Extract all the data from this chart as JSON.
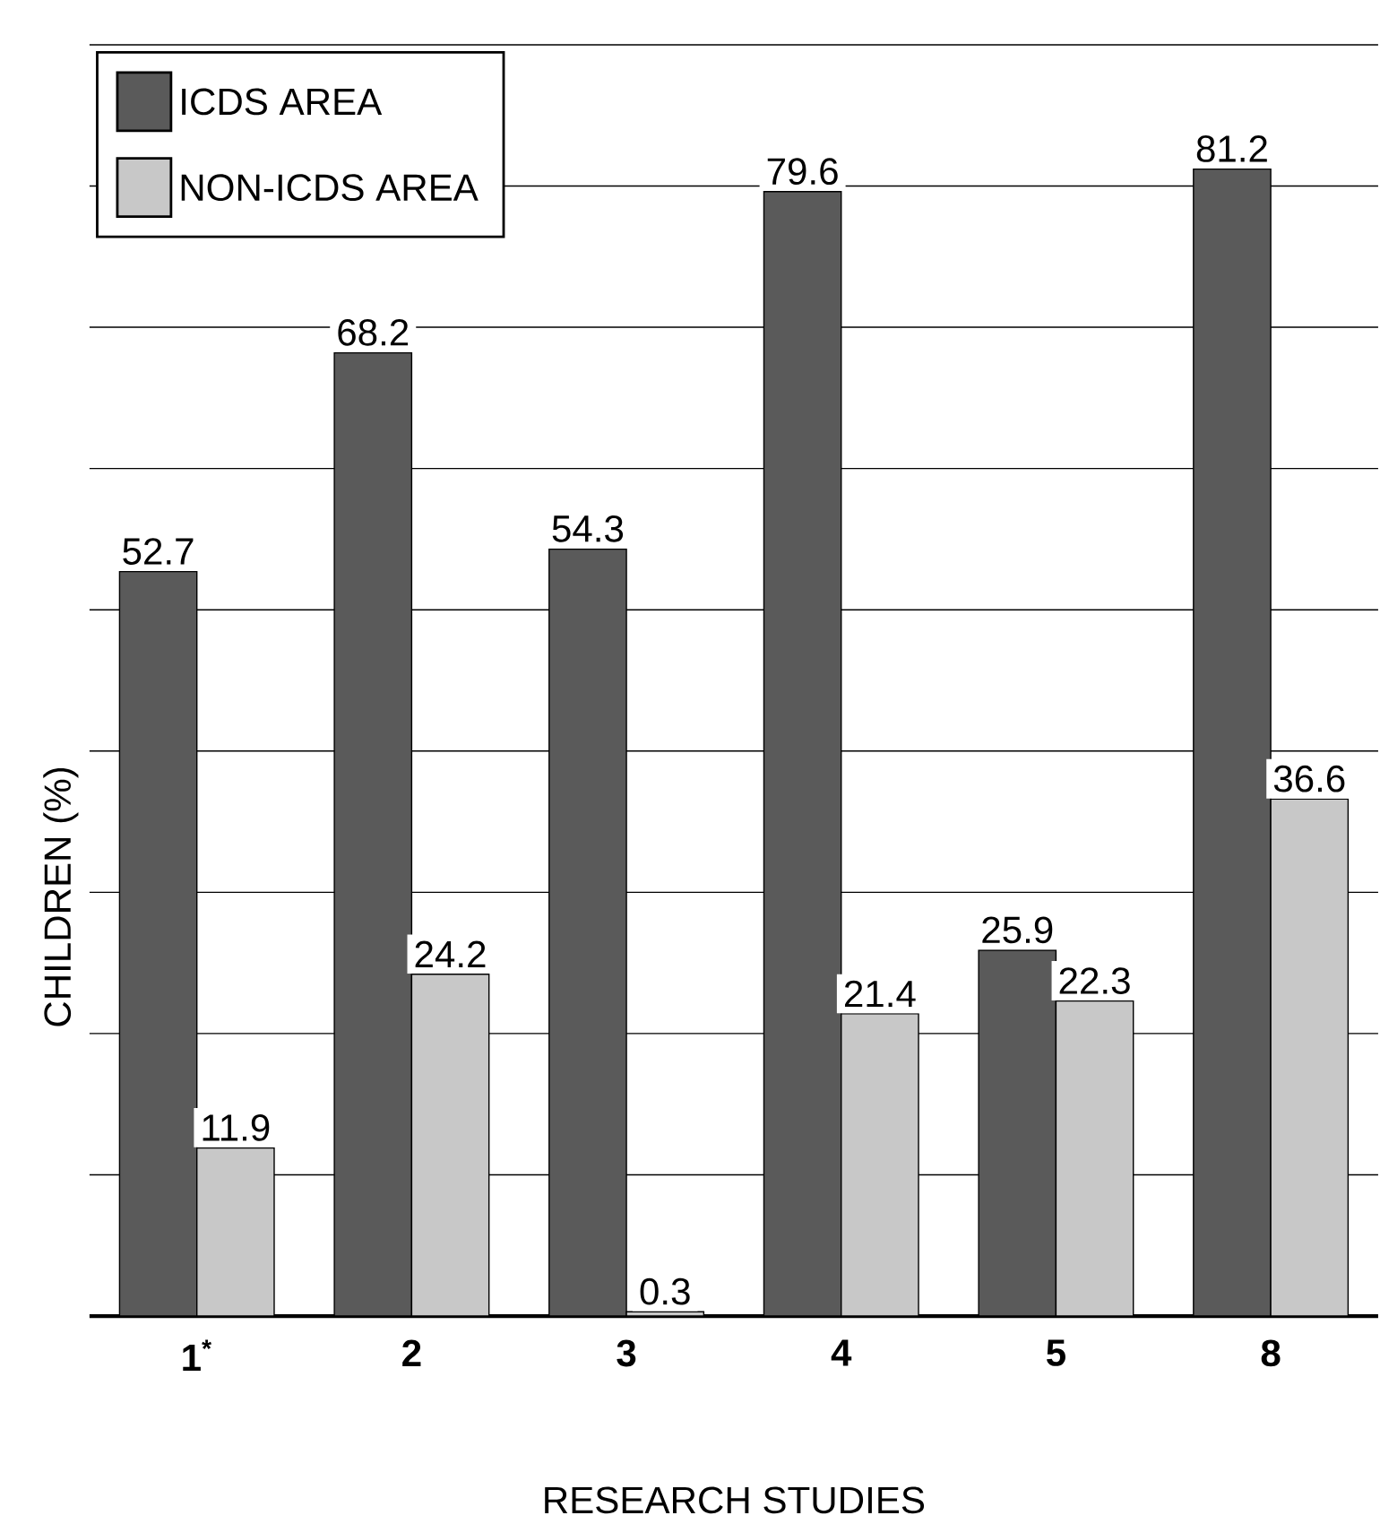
{
  "chart_data": {
    "type": "bar",
    "xlabel": "RESEARCH STUDIES",
    "ylabel": "CHILDREN (%)",
    "categories": [
      "1$^{*}$",
      "2",
      "3",
      "4",
      "5",
      "8"
    ],
    "series": [
      {
        "name": "ICDS AREA",
        "color": "#5a5a5a",
        "values": [
          52.7,
          68.2,
          54.3,
          79.6,
          25.9,
          81.2
        ]
      },
      {
        "name": "NON-ICDS AREA",
        "color": "#c8c8c8",
        "values": [
          11.9,
          24.2,
          0.3,
          21.4,
          22.3,
          36.6
        ]
      }
    ],
    "ylim": [
      0,
      90
    ],
    "yticks": [
      {
        "value": 10,
        "label": null
      },
      {
        "value": 20,
        "label": null
      },
      {
        "value": 30,
        "label": null
      },
      {
        "value": 40,
        "label": null
      },
      {
        "value": 50,
        "label": null
      },
      {
        "value": 60,
        "label": null
      },
      {
        "value": 70,
        "label": null
      },
      {
        "value": 80,
        "label": null
      },
      {
        "value": 90,
        "label": null
      }
    ],
    "tick_labels": "x",
    "grid": "y",
    "legend": "top left",
    "data_labels": true
  }
}
